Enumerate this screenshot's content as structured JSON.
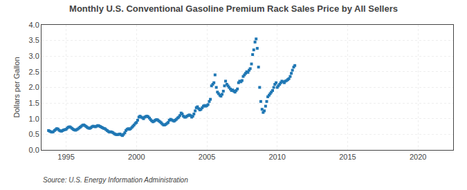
{
  "chart_data": {
    "type": "scatter",
    "title": "Monthly U.S. Conventional Gasoline Premium Rack Sales Price by All Sellers",
    "ylabel": "Dollars per Gallon",
    "annotations": [
      "Source: U.S. Energy Information Administration"
    ],
    "marker": "square",
    "grid": true,
    "xlim": [
      1993.25,
      2022.5
    ],
    "xticks": [
      1995,
      2000,
      2005,
      2010,
      2015,
      2020
    ],
    "ylim": [
      0.0,
      4.0
    ],
    "yticks": [
      {
        "value": 0.0,
        "label": "0.0"
      },
      0.5,
      {
        "value": 1.0,
        "label": "1.0"
      },
      1.5,
      {
        "value": 2.0,
        "label": "2.0"
      },
      2.5,
      {
        "value": 3.0,
        "label": "3.0"
      },
      3.5,
      {
        "value": 4.0,
        "label": "4.0"
      }
    ],
    "x": [
      1993.75,
      1993.83,
      1993.92,
      1994.0,
      1994.08,
      1994.17,
      1994.25,
      1994.33,
      1994.42,
      1994.5,
      1994.58,
      1994.67,
      1994.75,
      1994.83,
      1994.92,
      1995.0,
      1995.08,
      1995.17,
      1995.25,
      1995.33,
      1995.42,
      1995.5,
      1995.58,
      1995.67,
      1995.75,
      1995.83,
      1995.92,
      1996.0,
      1996.08,
      1996.17,
      1996.25,
      1996.33,
      1996.42,
      1996.5,
      1996.58,
      1996.67,
      1996.75,
      1996.83,
      1996.92,
      1997.0,
      1997.08,
      1997.17,
      1997.25,
      1997.33,
      1997.42,
      1997.5,
      1997.58,
      1997.67,
      1997.75,
      1997.83,
      1997.92,
      1998.0,
      1998.08,
      1998.17,
      1998.25,
      1998.33,
      1998.42,
      1998.5,
      1998.58,
      1998.67,
      1998.75,
      1998.83,
      1998.92,
      1999.0,
      1999.08,
      1999.17,
      1999.25,
      1999.33,
      1999.42,
      1999.5,
      1999.58,
      1999.67,
      1999.75,
      1999.83,
      1999.92,
      2000.0,
      2000.08,
      2000.17,
      2000.25,
      2000.33,
      2000.42,
      2000.5,
      2000.58,
      2000.67,
      2000.75,
      2000.83,
      2000.92,
      2001.0,
      2001.08,
      2001.17,
      2001.25,
      2001.33,
      2001.42,
      2001.5,
      2001.58,
      2001.67,
      2001.75,
      2001.83,
      2001.92,
      2002.0,
      2002.08,
      2002.17,
      2002.25,
      2002.33,
      2002.42,
      2002.5,
      2002.58,
      2002.67,
      2002.75,
      2002.83,
      2002.92,
      2003.0,
      2003.08,
      2003.17,
      2003.25,
      2003.33,
      2003.42,
      2003.5,
      2003.58,
      2003.67,
      2003.75,
      2003.83,
      2003.92,
      2004.0,
      2004.08,
      2004.17,
      2004.25,
      2004.33,
      2004.42,
      2004.5,
      2004.58,
      2004.67,
      2004.75,
      2004.83,
      2004.92,
      2005.0,
      2005.08,
      2005.17,
      2005.25,
      2005.33,
      2005.42,
      2005.5,
      2005.58,
      2005.67,
      2005.75,
      2005.83,
      2005.92,
      2006.0,
      2006.08,
      2006.17,
      2006.25,
      2006.33,
      2006.42,
      2006.5,
      2006.58,
      2006.67,
      2006.75,
      2006.83,
      2006.92,
      2007.0,
      2007.08,
      2007.17,
      2007.25,
      2007.33,
      2007.42,
      2007.5,
      2007.58,
      2007.67,
      2007.75,
      2007.83,
      2007.92,
      2008.0,
      2008.08,
      2008.17,
      2008.25,
      2008.33,
      2008.42,
      2008.5,
      2008.58,
      2008.67,
      2008.75,
      2008.83,
      2008.92,
      2009.0,
      2009.08,
      2009.17,
      2009.25,
      2009.33,
      2009.42,
      2009.5,
      2009.58,
      2009.67,
      2009.75,
      2009.83,
      2009.92,
      2010.0,
      2010.08,
      2010.17,
      2010.25,
      2010.33,
      2010.42,
      2010.5,
      2010.58,
      2010.67,
      2010.75,
      2010.83,
      2010.92,
      2011.0,
      2011.08,
      2011.17,
      2011.25
    ],
    "values": [
      0.62,
      0.6,
      0.58,
      0.57,
      0.58,
      0.62,
      0.65,
      0.68,
      0.67,
      0.63,
      0.61,
      0.6,
      0.62,
      0.64,
      0.65,
      0.66,
      0.7,
      0.73,
      0.74,
      0.72,
      0.69,
      0.66,
      0.64,
      0.63,
      0.65,
      0.67,
      0.7,
      0.73,
      0.76,
      0.79,
      0.8,
      0.78,
      0.75,
      0.72,
      0.7,
      0.69,
      0.71,
      0.74,
      0.76,
      0.75,
      0.74,
      0.76,
      0.78,
      0.77,
      0.75,
      0.73,
      0.71,
      0.69,
      0.68,
      0.65,
      0.62,
      0.59,
      0.57,
      0.58,
      0.57,
      0.55,
      0.52,
      0.5,
      0.49,
      0.49,
      0.5,
      0.51,
      0.48,
      0.46,
      0.5,
      0.55,
      0.62,
      0.66,
      0.68,
      0.66,
      0.68,
      0.72,
      0.76,
      0.8,
      0.85,
      0.88,
      0.95,
      1.05,
      1.08,
      1.05,
      1.03,
      1.0,
      1.05,
      1.07,
      1.08,
      1.06,
      1.02,
      0.97,
      0.93,
      0.9,
      0.92,
      0.95,
      0.97,
      0.96,
      0.93,
      0.9,
      0.87,
      0.83,
      0.8,
      0.8,
      0.82,
      0.85,
      0.88,
      0.95,
      0.98,
      0.96,
      0.94,
      0.92,
      0.95,
      0.98,
      1.02,
      1.05,
      1.1,
      1.18,
      1.15,
      1.08,
      1.05,
      1.05,
      1.08,
      1.1,
      1.12,
      1.1,
      1.05,
      1.08,
      1.15,
      1.25,
      1.35,
      1.38,
      1.32,
      1.28,
      1.3,
      1.35,
      1.4,
      1.42,
      1.4,
      1.42,
      1.45,
      1.55,
      1.62,
      2.05,
      2.1,
      2.15,
      2.4,
      2.0,
      1.85,
      1.8,
      1.75,
      1.72,
      1.78,
      1.88,
      2.05,
      2.2,
      2.1,
      2.05,
      2.0,
      1.95,
      1.9,
      1.92,
      1.88,
      1.85,
      1.9,
      1.95,
      2.15,
      2.2,
      2.18,
      2.22,
      2.35,
      2.4,
      2.45,
      2.5,
      2.48,
      2.55,
      2.6,
      2.75,
      3.05,
      3.2,
      3.45,
      3.55,
      3.25,
      2.65,
      2.0,
      1.55,
      1.3,
      1.2,
      1.25,
      1.4,
      1.55,
      1.7,
      1.75,
      1.8,
      1.85,
      1.9,
      2.0,
      2.1,
      2.15,
      2.0,
      2.05,
      2.1,
      2.15,
      2.2,
      2.18,
      2.15,
      2.2,
      2.22,
      2.25,
      2.28,
      2.35,
      2.45,
      2.55,
      2.65,
      2.7
    ]
  }
}
